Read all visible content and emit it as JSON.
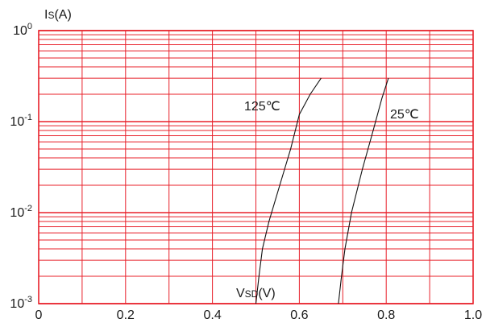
{
  "chart_data": {
    "type": "line",
    "title": "",
    "ylabel": {
      "main": "I",
      "sub": "S",
      "unit": "(A)"
    },
    "xlabel": {
      "main": "V",
      "sub": "SD",
      "unit": "(V)"
    },
    "xlim": [
      0,
      1.0
    ],
    "ylim": [
      0.001,
      1
    ],
    "yscale": "log",
    "grid": true,
    "grid_color": "#e8202a",
    "line_color": "#111111",
    "x_ticks": [
      "0",
      "0.2",
      "0.4",
      "0.6",
      "0.8",
      "1.0"
    ],
    "y_ticks": [
      {
        "base": "10",
        "exp": "0"
      },
      {
        "base": "10",
        "exp": "-1"
      },
      {
        "base": "10",
        "exp": "-2"
      },
      {
        "base": "10",
        "exp": "-3"
      }
    ],
    "series": [
      {
        "name": "125℃",
        "points": [
          [
            0.5,
            0.001
          ],
          [
            0.507,
            0.002
          ],
          [
            0.515,
            0.004
          ],
          [
            0.53,
            0.008
          ],
          [
            0.555,
            0.02
          ],
          [
            0.58,
            0.05
          ],
          [
            0.6,
            0.12
          ],
          [
            0.625,
            0.2
          ],
          [
            0.65,
            0.3
          ]
        ]
      },
      {
        "name": "25℃",
        "points": [
          [
            0.69,
            0.001
          ],
          [
            0.697,
            0.002
          ],
          [
            0.705,
            0.004
          ],
          [
            0.72,
            0.01
          ],
          [
            0.745,
            0.03
          ],
          [
            0.77,
            0.08
          ],
          [
            0.79,
            0.18
          ],
          [
            0.805,
            0.3
          ]
        ]
      }
    ]
  }
}
